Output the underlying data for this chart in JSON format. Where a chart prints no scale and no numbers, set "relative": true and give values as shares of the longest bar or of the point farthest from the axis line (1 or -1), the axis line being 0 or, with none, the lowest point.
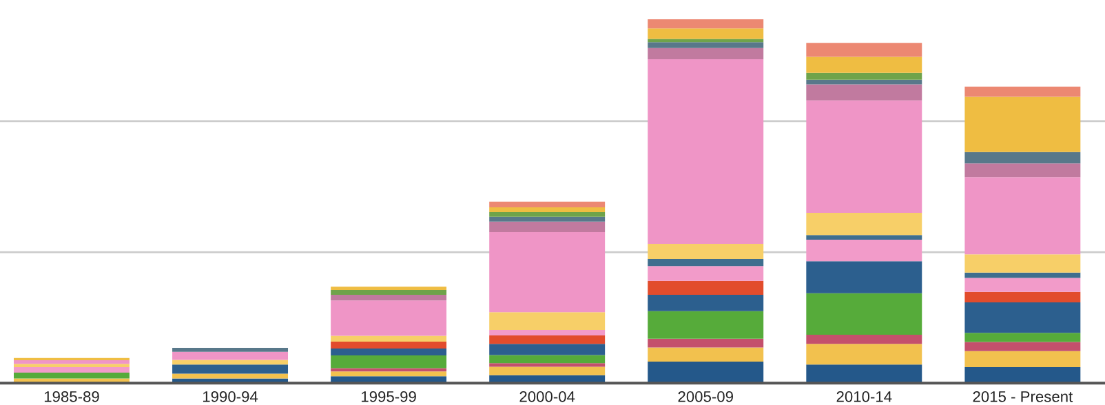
{
  "chart_data": {
    "type": "bar",
    "stacked": true,
    "relative": true,
    "legend": false,
    "ref_lines": [
      {
        "axis": "y",
        "value": 0.36,
        "color": "#cccccc"
      },
      {
        "axis": "y",
        "value": 0.72,
        "color": "#cccccc"
      }
    ],
    "categories": [
      "1985-89",
      "1990-94",
      "1995-99",
      "2000-04",
      "2005-09",
      "2010-14",
      "2015 - Present"
    ],
    "series": [
      {
        "color": "#24588a",
        "values": [
          0,
          0.013,
          0.019,
          0.022,
          0.059,
          0.051,
          0.044
        ]
      },
      {
        "color": "#f2c14e",
        "values": [
          0.013,
          0.013,
          0.013,
          0.023,
          0.039,
          0.057,
          0.044
        ]
      },
      {
        "color": "#c4506c",
        "values": [
          0,
          0,
          0.009,
          0.01,
          0.024,
          0.025,
          0.025
        ]
      },
      {
        "color": "#56ab3a",
        "values": [
          0.016,
          0,
          0.035,
          0.022,
          0.076,
          0.114,
          0.025
        ]
      },
      {
        "color": "#2c5f8e",
        "values": [
          0,
          0.025,
          0.019,
          0.031,
          0.045,
          0.088,
          0.084
        ]
      },
      {
        "color": "#e24c2c",
        "values": [
          0,
          0,
          0.019,
          0.023,
          0.038,
          0,
          0.029
        ]
      },
      {
        "color": "#f29bc9",
        "values": [
          0.015,
          0,
          0,
          0.015,
          0.041,
          0.059,
          0.038
        ]
      },
      {
        "color": "#3f6e8e",
        "values": [
          0,
          0,
          0,
          0,
          0.019,
          0.013,
          0.015
        ]
      },
      {
        "color": "#f7cf68",
        "values": [
          0.009,
          0.013,
          0.016,
          0.049,
          0.042,
          0.061,
          0.05
        ]
      },
      {
        "color": "#ef95c6",
        "values": [
          0.01,
          0.022,
          0.097,
          0.22,
          0.507,
          0.309,
          0.212
        ]
      },
      {
        "color": "#c17a9f",
        "values": [
          0,
          0,
          0.016,
          0.029,
          0.031,
          0.044,
          0.038
        ]
      },
      {
        "color": "#58788a",
        "values": [
          0,
          0.011,
          0,
          0.013,
          0.016,
          0.013,
          0.031
        ]
      },
      {
        "color": "#6fa34a",
        "values": [
          0,
          0,
          0.013,
          0.013,
          0.009,
          0.019,
          0
        ]
      },
      {
        "color": "#efbd42",
        "values": [
          0.006,
          0,
          0.009,
          0.013,
          0.029,
          0.044,
          0.152
        ]
      },
      {
        "color": "#ec8872",
        "values": [
          0,
          0,
          0,
          0.016,
          0.025,
          0.038,
          0.028
        ]
      }
    ]
  }
}
